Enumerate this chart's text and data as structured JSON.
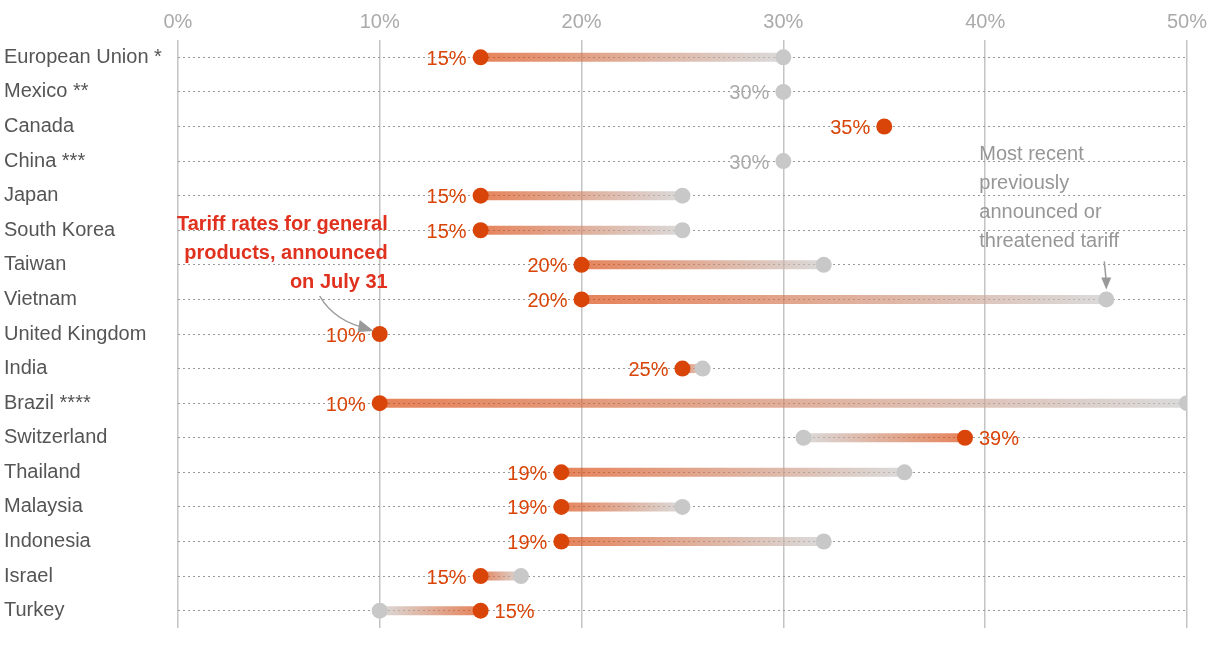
{
  "chart_data": {
    "type": "scatter",
    "orientation": "horizontal",
    "marker": "circle",
    "grid": true,
    "legend": false,
    "categories": [
      "European Union *",
      "Mexico **",
      "Canada",
      "China ***",
      "Japan",
      "South Korea",
      "Taiwan",
      "Vietnam",
      "United Kingdom",
      "India",
      "Brazil ****",
      "Switzerland",
      "Thailand",
      "Malaysia",
      "Indonesia",
      "Israel",
      "Turkey"
    ],
    "xlim": [
      0,
      50
    ],
    "xticks": [
      {
        "value": 0,
        "label": "0%"
      },
      {
        "value": 10,
        "label": "10%"
      },
      {
        "value": 20,
        "label": "20%"
      },
      {
        "value": 30,
        "label": "30%"
      },
      {
        "value": 40,
        "label": "40%"
      },
      {
        "value": 50,
        "label": "50%"
      }
    ],
    "series": [
      {
        "color": "#d94508",
        "values": [
          15,
          null,
          35,
          null,
          15,
          15,
          20,
          20,
          10,
          25,
          10,
          39,
          19,
          19,
          19,
          15,
          15
        ],
        "value_labels": [
          "15%",
          null,
          "35%",
          null,
          "15%",
          "15%",
          "20%",
          "20%",
          "10%",
          "25%",
          "10%",
          "39%",
          "19%",
          "19%",
          "19%",
          "15%",
          "15%"
        ]
      },
      {
        "color": "#c8c8c8",
        "values": [
          30,
          30,
          null,
          30,
          25,
          25,
          32,
          46,
          null,
          26,
          50,
          31,
          36,
          25,
          32,
          17,
          10
        ],
        "value_labels": [
          null,
          "30%",
          null,
          "30%",
          null,
          null,
          null,
          null,
          null,
          null,
          null,
          null,
          null,
          null,
          null,
          null,
          null
        ]
      }
    ],
    "annotations": [
      {
        "text": "Tariff rates for general products, announced on July 31",
        "x": 10,
        "y": "United Kingdom"
      },
      {
        "text": "Most recent previously announced or threatened tariff",
        "x": 46,
        "y": "Vietnam"
      }
    ]
  }
}
